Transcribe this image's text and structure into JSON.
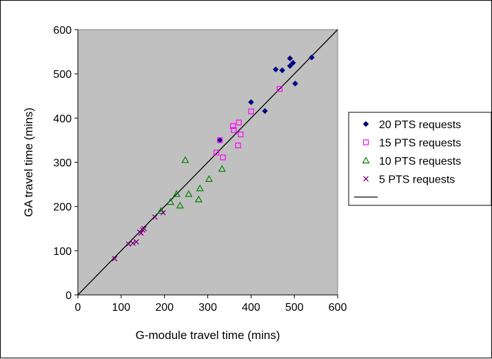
{
  "chart_data": {
    "type": "scatter",
    "title": "",
    "xlabel": "G-module travel time (mins)",
    "ylabel": "GA travel time (mins)",
    "xlim": [
      0,
      600
    ],
    "ylim": [
      0,
      600
    ],
    "xticks": [
      "0",
      "100",
      "200",
      "300",
      "400",
      "500",
      "600"
    ],
    "yticks": [
      "0",
      "100",
      "200",
      "300",
      "400",
      "500",
      "600"
    ],
    "grid": false,
    "plot_background": "#c0c0c0",
    "legend_position": "right",
    "series": [
      {
        "name": "20 PTS requests",
        "marker": "diamond",
        "color": "#000080",
        "points": [
          [
            328,
            350
          ],
          [
            400,
            436
          ],
          [
            432,
            416
          ],
          [
            457,
            510
          ],
          [
            472,
            508
          ],
          [
            490,
            535
          ],
          [
            490,
            518
          ],
          [
            497,
            525
          ],
          [
            502,
            478
          ],
          [
            540,
            537
          ]
        ]
      },
      {
        "name": "15 PTS requests",
        "marker": "square",
        "color": "#ff00ff",
        "points": [
          [
            320,
            322
          ],
          [
            328,
            350
          ],
          [
            335,
            311
          ],
          [
            358,
            382
          ],
          [
            360,
            373
          ],
          [
            370,
            338
          ],
          [
            372,
            390
          ],
          [
            376,
            363
          ],
          [
            400,
            415
          ],
          [
            466,
            466
          ]
        ]
      },
      {
        "name": "10 PTS requests",
        "marker": "triangle",
        "color": "#008000",
        "points": [
          [
            192,
            190
          ],
          [
            214,
            210
          ],
          [
            228,
            228
          ],
          [
            236,
            202
          ],
          [
            248,
            305
          ],
          [
            256,
            228
          ],
          [
            279,
            216
          ],
          [
            282,
            241
          ],
          [
            303,
            262
          ],
          [
            333,
            285
          ]
        ]
      },
      {
        "name": "5 PTS requests",
        "marker": "x",
        "color": "#800080",
        "points": [
          [
            85,
            82
          ],
          [
            117,
            115
          ],
          [
            127,
            117
          ],
          [
            135,
            120
          ],
          [
            143,
            142
          ],
          [
            146,
            140
          ],
          [
            150,
            147
          ],
          [
            153,
            150
          ],
          [
            178,
            176
          ],
          [
            197,
            186
          ]
        ]
      },
      {
        "name": "",
        "marker": "line",
        "color": "#000000",
        "points": [
          [
            0,
            0
          ],
          [
            600,
            600
          ]
        ]
      }
    ]
  }
}
